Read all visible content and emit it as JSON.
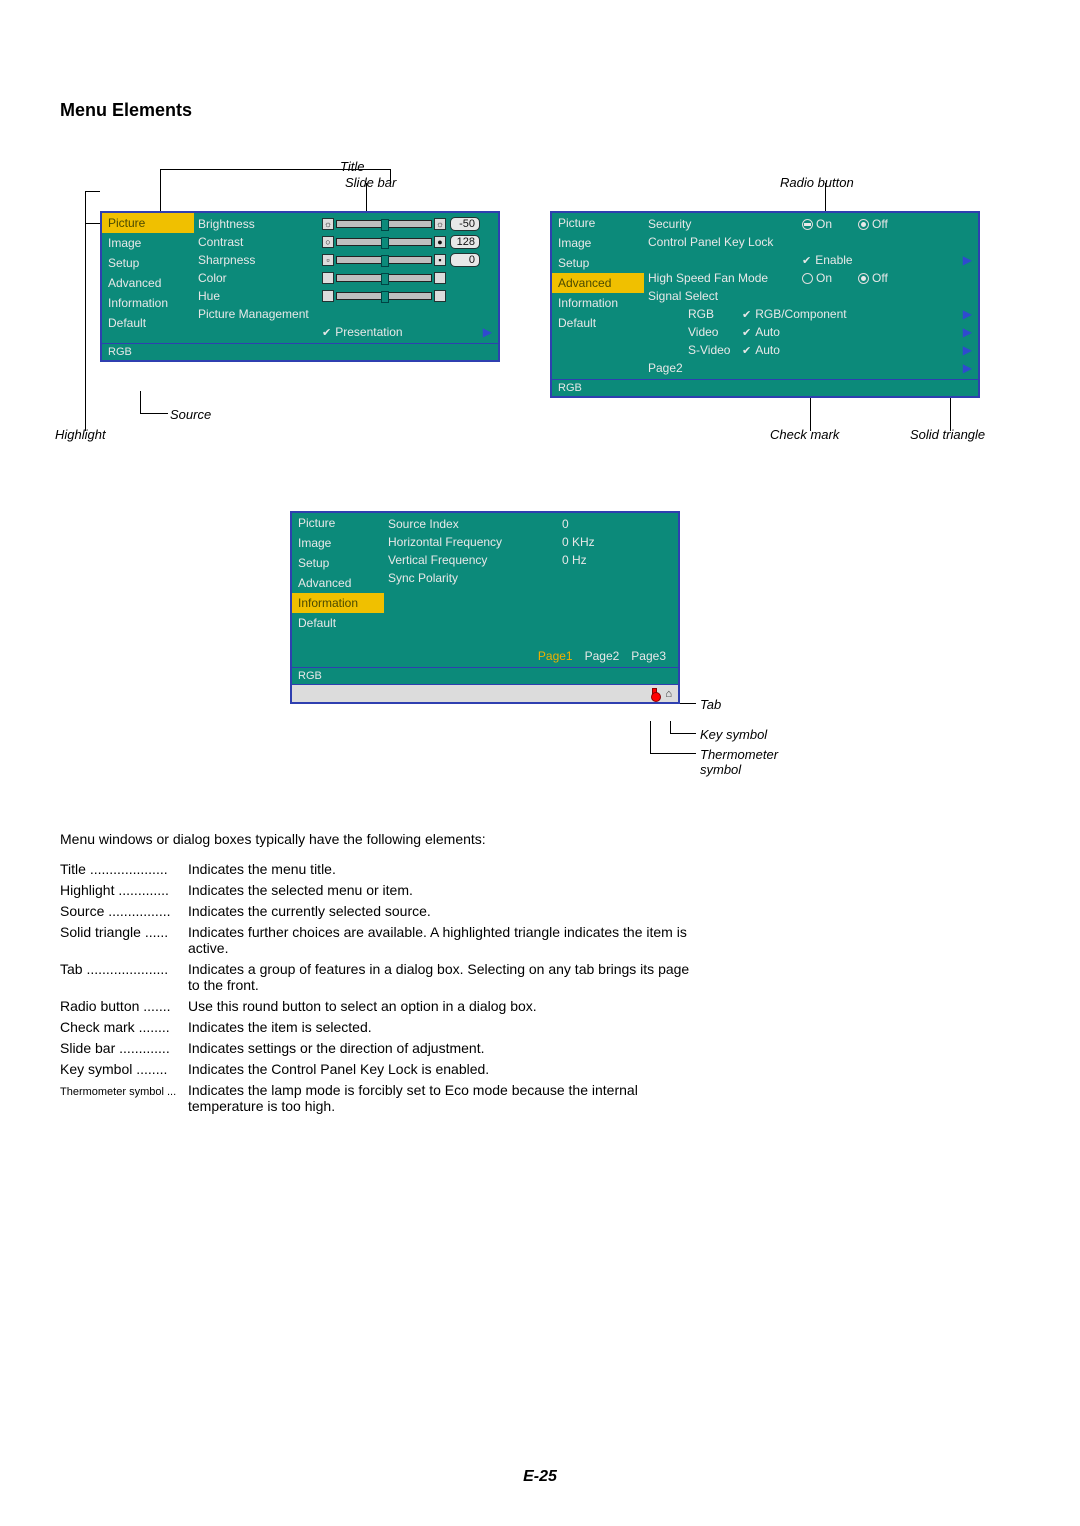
{
  "heading": "Menu Elements",
  "callouts": {
    "title": "Title",
    "slidebar": "Slide bar",
    "source": "Source",
    "highlight": "Highlight",
    "radio": "Radio button",
    "check": "Check mark",
    "solidtri": "Solid triangle",
    "tab": "Tab",
    "keysym": "Key symbol",
    "thermo": "Thermometer symbol"
  },
  "menu1": {
    "left": [
      "Picture",
      "Image",
      "Setup",
      "Advanced",
      "Information",
      "Default"
    ],
    "highlight_index": 0,
    "rows": [
      {
        "label": "Brightness",
        "type": "slider",
        "val": "-50",
        "pos": 0.5,
        "caps": "sun"
      },
      {
        "label": "Contrast",
        "type": "slider",
        "val": "128",
        "pos": 0.5,
        "caps": "circle"
      },
      {
        "label": "Sharpness",
        "type": "slider",
        "val": "0",
        "pos": 0.5,
        "caps": "square"
      },
      {
        "label": "Color",
        "type": "slider_noval",
        "pos": 0.5
      },
      {
        "label": "Hue",
        "type": "slider_noval",
        "pos": 0.5
      },
      {
        "label": "Picture Management",
        "type": "header"
      },
      {
        "label": "",
        "type": "check_tri",
        "text": "Presentation"
      }
    ],
    "source": "RGB"
  },
  "menu2": {
    "left": [
      "Picture",
      "Image",
      "Setup",
      "Advanced",
      "Information",
      "Default"
    ],
    "highlight_index": 3,
    "rows": [
      {
        "label": "Security",
        "type": "radios",
        "opts": [
          {
            "t": "On",
            "on": false,
            "dash": true
          },
          {
            "t": "Off",
            "on": true
          }
        ]
      },
      {
        "label": "Control Panel Key Lock",
        "type": "header"
      },
      {
        "label": "",
        "type": "check_tri",
        "text": "Enable"
      },
      {
        "label": "High Speed Fan Mode",
        "type": "radios",
        "opts": [
          {
            "t": "On",
            "on": false
          },
          {
            "t": "Off",
            "on": true
          }
        ]
      },
      {
        "label": "Signal Select",
        "type": "header"
      },
      {
        "label": "RGB",
        "type": "check_tri_val",
        "text": "RGB/Component",
        "indent": true
      },
      {
        "label": "Video",
        "type": "check_tri_val",
        "text": "Auto",
        "indent": true
      },
      {
        "label": "S-Video",
        "type": "check_tri_val",
        "text": "Auto",
        "indent": true
      },
      {
        "label": "Page2",
        "type": "tri_only",
        "indent": false
      }
    ],
    "source": "RGB"
  },
  "menu3": {
    "left": [
      "Picture",
      "Image",
      "Setup",
      "Advanced",
      "Information",
      "Default"
    ],
    "highlight_index": 4,
    "rows": [
      {
        "label": "Source Index",
        "val": "0"
      },
      {
        "label": "Horizontal Frequency",
        "val": "0 KHz"
      },
      {
        "label": "Vertical Frequency",
        "val": "0 Hz"
      },
      {
        "label": "Sync Polarity",
        "val": ""
      }
    ],
    "tabs": [
      "Page1",
      "Page2",
      "Page3"
    ],
    "active_tab": 0,
    "source": "RGB"
  },
  "intro": "Menu windows or dialog boxes typically have the following elements:",
  "definitions": [
    {
      "term": "Title",
      "dots": "....................",
      "desc": "Indicates the menu title."
    },
    {
      "term": "Highlight",
      "dots": ".............",
      "desc": "Indicates the selected menu or item."
    },
    {
      "term": "Source",
      "dots": "................",
      "desc": "Indicates the currently selected source."
    },
    {
      "term": "Solid triangle",
      "dots": "......",
      "desc": "Indicates further choices are available. A highlighted triangle indicates the item is active."
    },
    {
      "term": "Tab",
      "dots": ".....................",
      "desc": "Indicates a group of features in a dialog box. Selecting on any tab brings its page to the front."
    },
    {
      "term": "Radio button",
      "dots": ".......",
      "desc": "Use this round button to select an option in a dialog box."
    },
    {
      "term": "Check mark",
      "dots": "........",
      "desc": "Indicates the item is selected."
    },
    {
      "term": "Slide bar",
      "dots": ".............",
      "desc": "Indicates settings or the direction of adjustment."
    },
    {
      "term": "Key symbol",
      "dots": "........",
      "desc": "Indicates the Control Panel Key Lock is enabled."
    },
    {
      "term": "Thermometer symbol",
      "dots": "...",
      "small": true,
      "desc": "Indicates the lamp mode is forcibly set to Eco mode because the internal temperature is too high."
    }
  ],
  "page_num": "E-25",
  "colors": {
    "menu_bg": "#0c8a7a",
    "menu_border": "#2f3fb0",
    "highlight": "#f0c000",
    "text": "#e8e8e8"
  }
}
